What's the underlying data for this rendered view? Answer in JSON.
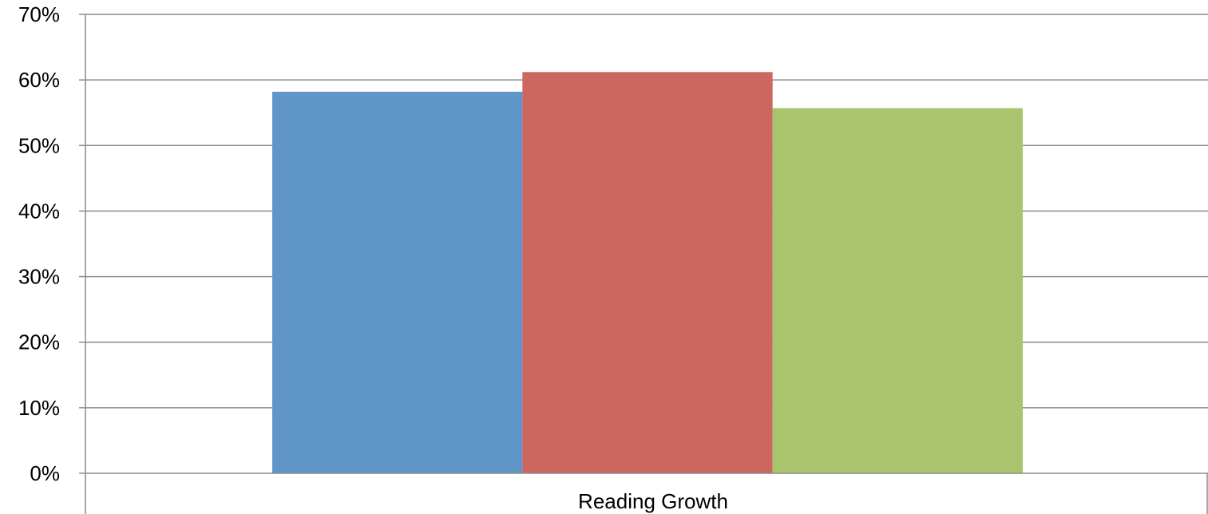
{
  "chart_data": {
    "type": "bar",
    "title": "",
    "xlabel": "",
    "ylabel": "",
    "categories": [
      "Reading Growth"
    ],
    "series": [
      {
        "values": [
          0.582
        ],
        "color": "#6095C8"
      },
      {
        "values": [
          0.612
        ],
        "color": "#CC6660"
      },
      {
        "values": [
          0.557
        ],
        "color": "#A9C46C"
      }
    ],
    "ylim": [
      0,
      0.7
    ],
    "yticks": [
      0,
      0.1,
      0.2,
      0.3,
      0.4,
      0.5,
      0.6,
      0.7
    ],
    "ytick_labels": [
      "0%",
      "10%",
      "20%",
      "30%",
      "40%",
      "50%",
      "60%",
      "70%"
    ],
    "grid": true,
    "legend": "none",
    "colors": {
      "gridline": "#8C8C8C",
      "axis": "#8C8C8C",
      "background": "#FFFFFF"
    }
  }
}
